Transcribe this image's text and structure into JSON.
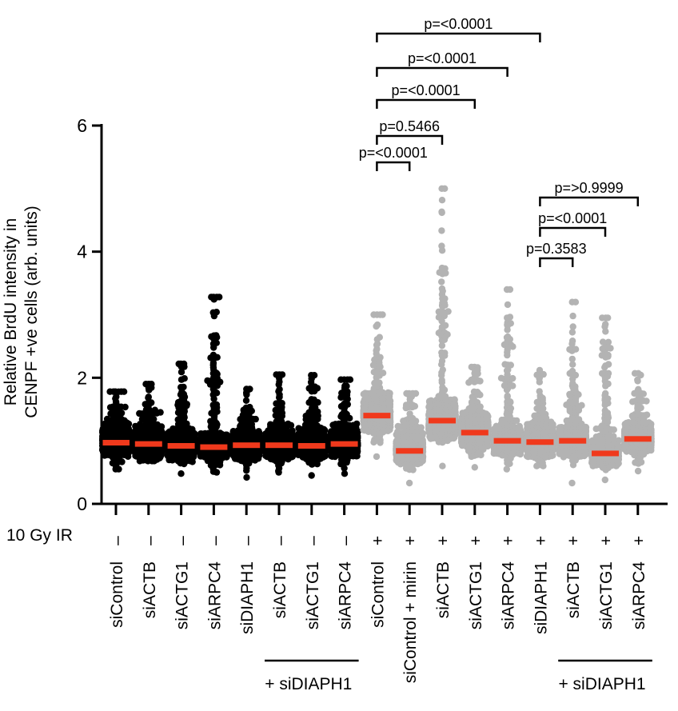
{
  "chart_data": {
    "type": "scatter",
    "subtype": "dot-plot-with-median",
    "ylabel_lines": [
      "Relative BrdU intensity in",
      "CENPF +ve cells (arb. units)"
    ],
    "ylim": [
      0,
      6
    ],
    "yticks": [
      0,
      2,
      4,
      6
    ],
    "ir_row_label": "10 Gy IR",
    "categories": [
      "siControl",
      "siACTB",
      "siACTG1",
      "siARPC4",
      "siDIAPH1",
      "siACTB",
      "siACTG1",
      "siARPC4",
      "siControl",
      "siControl + mirin",
      "siACTB",
      "siACTG1",
      "siARPC4",
      "siDIAPH1",
      "siACTB",
      "siACTG1",
      "siARPC4"
    ],
    "ir_marks": [
      "–",
      "–",
      "–",
      "–",
      "–",
      "–",
      "–",
      "–",
      "+",
      "+",
      "+",
      "+",
      "+",
      "+",
      "+",
      "+",
      "+"
    ],
    "group_labels": [
      {
        "text": "+ siDIAPH1",
        "from": 5,
        "to": 7
      },
      {
        "text": "+ siDIAPH1",
        "from": 14,
        "to": 16
      }
    ],
    "series": [
      {
        "name": "siControl",
        "irradiated": false,
        "color": "#000000",
        "median": 0.97,
        "min": 0.55,
        "max": 1.78
      },
      {
        "name": "siACTB",
        "irradiated": false,
        "color": "#000000",
        "median": 0.95,
        "min": 0.68,
        "max": 1.9
      },
      {
        "name": "siACTG1",
        "irradiated": false,
        "color": "#000000",
        "median": 0.92,
        "min": 0.48,
        "max": 2.22
      },
      {
        "name": "siARPC4",
        "irradiated": false,
        "color": "#000000",
        "median": 0.9,
        "min": 0.5,
        "max": 3.28
      },
      {
        "name": "siDIAPH1",
        "irradiated": false,
        "color": "#000000",
        "median": 0.93,
        "min": 0.42,
        "max": 1.82
      },
      {
        "name": "siACTB + siDIAPH1",
        "irradiated": false,
        "color": "#000000",
        "median": 0.93,
        "min": 0.5,
        "max": 2.05
      },
      {
        "name": "siACTG1 + siDIAPH1",
        "irradiated": false,
        "color": "#000000",
        "median": 0.92,
        "min": 0.45,
        "max": 2.04
      },
      {
        "name": "siARPC4 + siDIAPH1",
        "irradiated": false,
        "color": "#000000",
        "median": 0.95,
        "min": 0.48,
        "max": 1.97
      },
      {
        "name": "siControl",
        "irradiated": true,
        "color": "#b3b3b3",
        "median": 1.4,
        "min": 0.75,
        "max": 3.0
      },
      {
        "name": "siControl + mirin",
        "irradiated": true,
        "color": "#b3b3b3",
        "median": 0.84,
        "min": 0.33,
        "max": 1.75
      },
      {
        "name": "siACTB",
        "irradiated": true,
        "color": "#b3b3b3",
        "median": 1.32,
        "min": 0.6,
        "max": 5.0
      },
      {
        "name": "siACTG1",
        "irradiated": true,
        "color": "#b3b3b3",
        "median": 1.13,
        "min": 0.58,
        "max": 2.17
      },
      {
        "name": "siARPC4",
        "irradiated": true,
        "color": "#b3b3b3",
        "median": 1.0,
        "min": 0.55,
        "max": 3.4
      },
      {
        "name": "siDIAPH1",
        "irradiated": true,
        "color": "#b3b3b3",
        "median": 0.98,
        "min": 0.6,
        "max": 2.12
      },
      {
        "name": "siACTB + siDIAPH1",
        "irradiated": true,
        "color": "#b3b3b3",
        "median": 1.0,
        "min": 0.33,
        "max": 3.2
      },
      {
        "name": "siACTG1 + siDIAPH1",
        "irradiated": true,
        "color": "#b3b3b3",
        "median": 0.8,
        "min": 0.38,
        "max": 2.95
      },
      {
        "name": "siARPC4 + siDIAPH1",
        "irradiated": true,
        "color": "#b3b3b3",
        "median": 1.03,
        "min": 0.52,
        "max": 2.07
      }
    ],
    "median_color": "#f0391c",
    "comparisons": [
      {
        "from": 8,
        "to": 13,
        "label": "p=<0.0001"
      },
      {
        "from": 8,
        "to": 12,
        "label": "p=<0.0001"
      },
      {
        "from": 8,
        "to": 11,
        "label": "p=<0.0001"
      },
      {
        "from": 8,
        "to": 10,
        "label": "p=0.5466"
      },
      {
        "from": 8,
        "to": 9,
        "label": "p=<0.0001"
      },
      {
        "from": 13,
        "to": 16,
        "label": "p=>0.9999"
      },
      {
        "from": 13,
        "to": 15,
        "label": "p=<0.0001"
      },
      {
        "from": 13,
        "to": 14,
        "label": "p=0.3583"
      }
    ]
  }
}
